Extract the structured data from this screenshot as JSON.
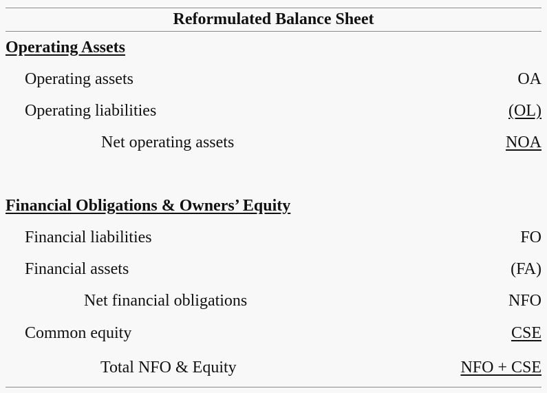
{
  "title": "Reformulated Balance Sheet",
  "operating": {
    "heading": "Operating Assets",
    "rows": [
      {
        "label": "Operating assets",
        "value": "OA"
      },
      {
        "label": "Operating liabilities",
        "value": "(OL)"
      },
      {
        "label": "Net operating assets",
        "value": "NOA"
      }
    ]
  },
  "financial": {
    "heading": "Financial Obligations & Owners’ Equity",
    "rows": [
      {
        "label": "Financial liabilities",
        "value": "FO"
      },
      {
        "label": "Financial assets",
        "value": "(FA)"
      },
      {
        "label": "Net financial obligations",
        "value": "NFO"
      },
      {
        "label": "Common equity",
        "value": "CSE"
      },
      {
        "label": "Total NFO & Equity",
        "value": "NFO + CSE"
      }
    ]
  }
}
